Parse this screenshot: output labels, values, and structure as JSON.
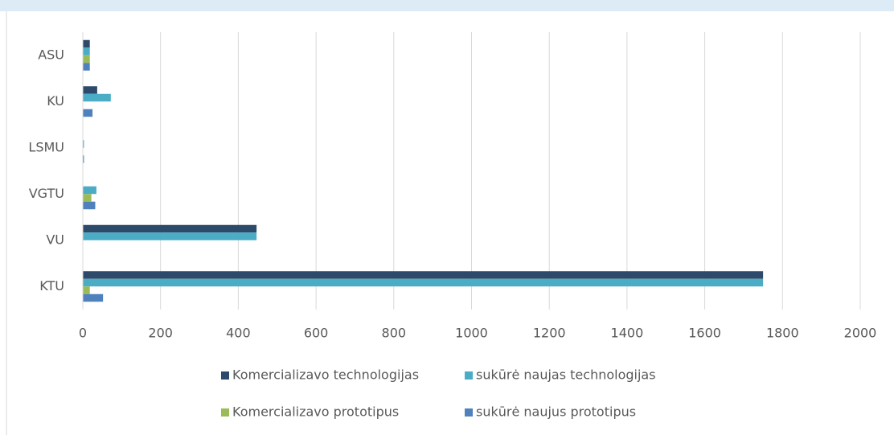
{
  "chart_data": {
    "type": "barh",
    "categories": [
      "ASU",
      "KU",
      "LSMU",
      "VGTU",
      "VU",
      "KTU"
    ],
    "series": [
      {
        "name": "Komercializavo technologijas",
        "color": "#2e4a6b",
        "values": [
          18,
          37,
          0,
          0,
          447,
          1750
        ]
      },
      {
        "name": "sukūrė naujas technologijas",
        "color": "#4bacc6",
        "values": [
          18,
          72,
          3,
          35,
          447,
          1750
        ]
      },
      {
        "name": "Komercializavo prototipus",
        "color": "#9bbb59",
        "values": [
          18,
          0,
          0,
          22,
          0,
          18
        ]
      },
      {
        "name": "sukūrė naujus prototipus",
        "color": "#4f81bd",
        "values": [
          18,
          25,
          3,
          32,
          0,
          52
        ]
      }
    ],
    "xlim": [
      0,
      2000
    ],
    "xticks": [
      0,
      200,
      400,
      600,
      800,
      1000,
      1200,
      1400,
      1600,
      1800,
      2000
    ],
    "grid": true,
    "legend": "bottom"
  }
}
